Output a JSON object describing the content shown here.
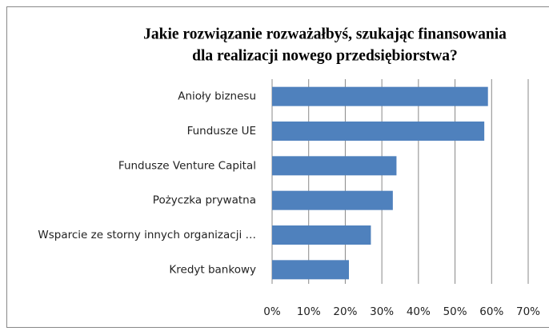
{
  "chart_data": {
    "type": "bar",
    "orientation": "horizontal",
    "title_lines": [
      "Jakie rozwiązanie rozważałbyś, szukając finansowania",
      "dla realizacji nowego przedsiębiorstwa?"
    ],
    "categories": [
      "Anioły biznesu",
      "Fundusze UE",
      "Fundusze Venture Capital",
      "Pożyczka prywatna",
      "Wsparcie ze storny innych organizacji …",
      "Kredyt bankowy"
    ],
    "values": [
      59,
      58,
      34,
      33,
      27,
      21
    ],
    "color": "#4f81bd",
    "xlim": [
      0,
      70
    ],
    "xticks": [
      {
        "value": 0,
        "label": "0%"
      },
      {
        "value": 10,
        "label": "10%"
      },
      {
        "value": 20,
        "label": "20%"
      },
      {
        "value": 30,
        "label": "30%"
      },
      {
        "value": 40,
        "label": "40%"
      },
      {
        "value": 50,
        "label": "50%"
      },
      {
        "value": 60,
        "label": "60%"
      },
      {
        "value": 70,
        "label": "70%"
      }
    ],
    "grid": true
  }
}
